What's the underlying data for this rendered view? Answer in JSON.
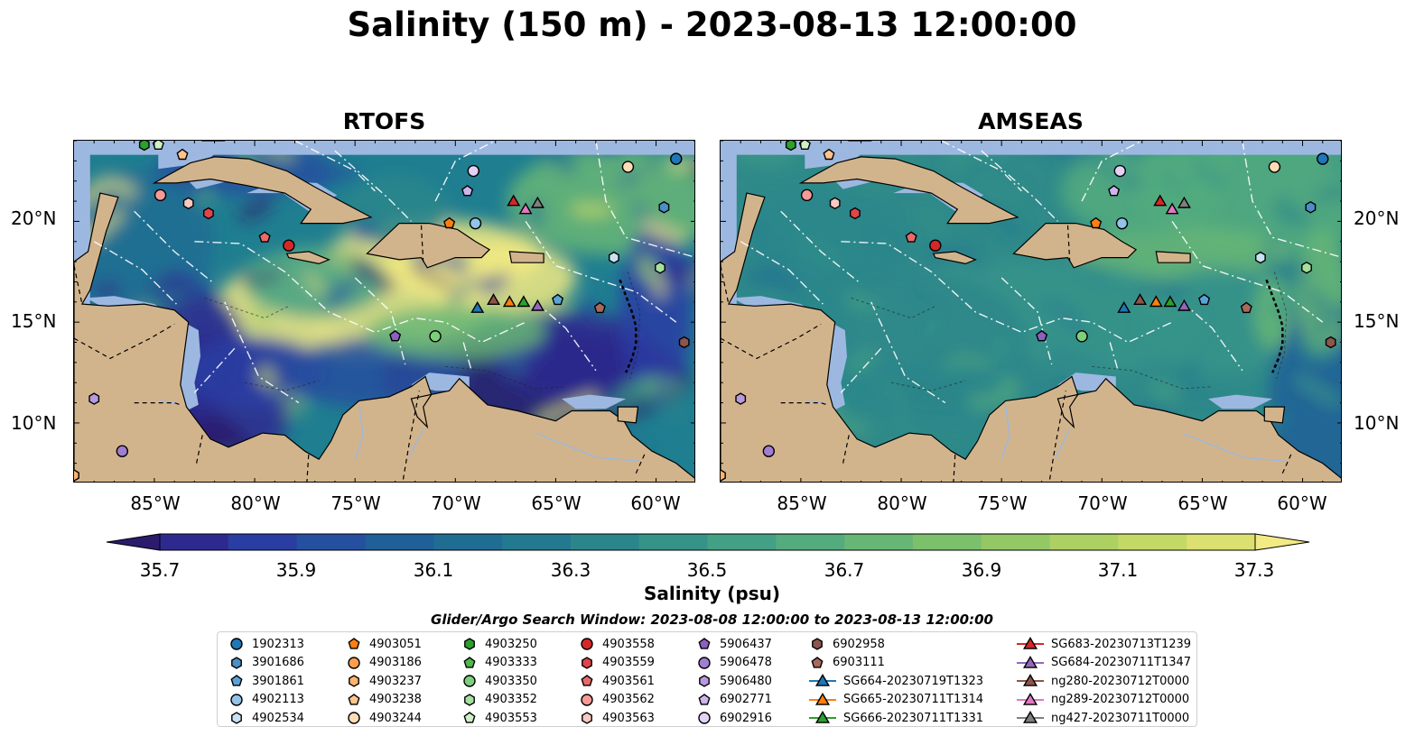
{
  "title": "Salinity (150 m) - 2023-08-13 12:00:00",
  "panels": [
    {
      "title": "RTOFS",
      "model": "rtofs"
    },
    {
      "title": "AMSEAS",
      "model": "amseas"
    }
  ],
  "lat_labels": [
    "20°N",
    "15°N",
    "10°N"
  ],
  "lon_labels": [
    "85°W",
    "80°W",
    "75°W",
    "70°W",
    "65°W",
    "60°W"
  ],
  "colorbar": {
    "label": "Salinity (psu)",
    "ticks": [
      "35.7",
      "35.9",
      "36.1",
      "36.3",
      "36.5",
      "36.7",
      "36.9",
      "37.1",
      "37.3"
    ],
    "min": 35.6,
    "max": 37.4,
    "step": 0.1,
    "colors": [
      "#2b1b6c",
      "#2d2a8f",
      "#2a3da3",
      "#24509f",
      "#205f98",
      "#1f6d93",
      "#23798f",
      "#2b868b",
      "#369389",
      "#43a085",
      "#54ab7e",
      "#67b675",
      "#7cc06b",
      "#93c865",
      "#add063",
      "#c4d866",
      "#dbe070",
      "#f2ea83"
    ],
    "extend": "both"
  },
  "search_window": "Glider/Argo Search Window: 2023-08-08 12:00:00 to 2023-08-13 12:00:00",
  "legend": [
    {
      "label": "1902313",
      "marker": "circle",
      "color": "#1f77b4"
    },
    {
      "label": "3901686",
      "marker": "hexagon",
      "color": "#4a8fc6"
    },
    {
      "label": "3901861",
      "marker": "pentagon",
      "color": "#5ba3d6"
    },
    {
      "label": "4902113",
      "marker": "circle",
      "color": "#93c4e8"
    },
    {
      "label": "4902534",
      "marker": "hexagon",
      "color": "#c8e2f4"
    },
    {
      "label": "4903051",
      "marker": "pentagon",
      "color": "#ff7f0e"
    },
    {
      "label": "4903186",
      "marker": "circle",
      "color": "#ff9d4d"
    },
    {
      "label": "4903237",
      "marker": "hexagon",
      "color": "#ffb36e"
    },
    {
      "label": "4903238",
      "marker": "pentagon",
      "color": "#ffc48e"
    },
    {
      "label": "4903244",
      "marker": "circle",
      "color": "#ffdcb5"
    },
    {
      "label": "4903250",
      "marker": "hexagon",
      "color": "#2ca02c"
    },
    {
      "label": "4903333",
      "marker": "pentagon",
      "color": "#4fb84f"
    },
    {
      "label": "4903350",
      "marker": "circle",
      "color": "#7cd07c"
    },
    {
      "label": "4903352",
      "marker": "hexagon",
      "color": "#a6dfa0"
    },
    {
      "label": "4903553",
      "marker": "pentagon",
      "color": "#cdf0c6"
    },
    {
      "label": "4903558",
      "marker": "circle",
      "color": "#d62728"
    },
    {
      "label": "4903559",
      "marker": "hexagon",
      "color": "#e0454a"
    },
    {
      "label": "4903561",
      "marker": "pentagon",
      "color": "#ea6a6a"
    },
    {
      "label": "4903562",
      "marker": "circle",
      "color": "#f59a98"
    },
    {
      "label": "4903563",
      "marker": "hexagon",
      "color": "#fbc8c4"
    },
    {
      "label": "5906437",
      "marker": "pentagon",
      "color": "#8c5fc0"
    },
    {
      "label": "5906478",
      "marker": "circle",
      "color": "#a07ed0"
    },
    {
      "label": "5906480",
      "marker": "hexagon",
      "color": "#b899dd"
    },
    {
      "label": "6902771",
      "marker": "pentagon",
      "color": "#ccb6ea"
    },
    {
      "label": "6902916",
      "marker": "circle",
      "color": "#e3d2f5"
    },
    {
      "label": "6902958",
      "marker": "hexagon",
      "color": "#8c564b"
    },
    {
      "label": "6903111",
      "marker": "pentagon",
      "color": "#a8695c"
    },
    {
      "label": "SG664-20230719T1323",
      "marker": "triangle-line",
      "color": "#1f77b4"
    },
    {
      "label": "SG665-20230711T1314",
      "marker": "triangle-line",
      "color": "#ff7f0e"
    },
    {
      "label": "SG666-20230711T1331",
      "marker": "triangle-line",
      "color": "#2ca02c"
    },
    {
      "label": "SG683-20230713T1239",
      "marker": "triangle-line",
      "color": "#d62728"
    },
    {
      "label": "SG684-20230711T1347",
      "marker": "triangle-line",
      "color": "#9467bd"
    },
    {
      "label": "ng280-20230712T0000",
      "marker": "triangle-line",
      "color": "#8c564b"
    },
    {
      "label": "ng289-20230712T0000",
      "marker": "triangle-line",
      "color": "#e377c2"
    },
    {
      "label": "ng427-20230711T0000",
      "marker": "triangle-line",
      "color": "#7f7f7f"
    }
  ],
  "map_extent": {
    "lon": [
      -89,
      -58
    ],
    "lat": [
      7,
      24
    ]
  },
  "observations": [
    {
      "id": "1902313",
      "lon": -59.0,
      "lat": 23.1
    },
    {
      "id": "3901686",
      "lon": -59.6,
      "lat": 20.7
    },
    {
      "id": "4902113",
      "lon": -69.0,
      "lat": 19.9
    },
    {
      "id": "4902534",
      "lon": -62.1,
      "lat": 18.2
    },
    {
      "id": "4903051",
      "lon": -70.3,
      "lat": 19.9
    },
    {
      "id": "4903237",
      "lon": -89.0,
      "lat": 7.4
    },
    {
      "id": "4903238",
      "lon": -83.6,
      "lat": 23.3
    },
    {
      "id": "4903244",
      "lon": -61.4,
      "lat": 22.7
    },
    {
      "id": "4903250",
      "lon": -85.5,
      "lat": 23.8
    },
    {
      "id": "4903350",
      "lon": -71.0,
      "lat": 14.3
    },
    {
      "id": "4903352",
      "lon": -59.8,
      "lat": 17.7
    },
    {
      "id": "4903553",
      "lon": -84.8,
      "lat": 23.8
    },
    {
      "id": "4903558",
      "lon": -78.3,
      "lat": 18.8
    },
    {
      "id": "4903559",
      "lon": -82.3,
      "lat": 20.4
    },
    {
      "id": "4903561",
      "lon": -79.5,
      "lat": 19.2
    },
    {
      "id": "4903562",
      "lon": -84.7,
      "lat": 21.3
    },
    {
      "id": "4903563",
      "lon": -83.3,
      "lat": 20.9
    },
    {
      "id": "5906437",
      "lon": -73.0,
      "lat": 14.3
    },
    {
      "id": "5906478",
      "lon": -86.6,
      "lat": 8.6
    },
    {
      "id": "5906480",
      "lon": -88.0,
      "lat": 11.2
    },
    {
      "id": "6902771",
      "lon": -69.4,
      "lat": 21.5
    },
    {
      "id": "6902916",
      "lon": -69.1,
      "lat": 22.5
    },
    {
      "id": "6902958",
      "lon": -58.6,
      "lat": 14.0
    },
    {
      "id": "6903111",
      "lon": -62.8,
      "lat": 15.7
    },
    {
      "id": "3901861",
      "lon": -64.9,
      "lat": 16.1
    },
    {
      "id": "SG664-20230719T1323",
      "lon": -68.9,
      "lat": 15.7
    },
    {
      "id": "SG665-20230711T1314",
      "lon": -67.3,
      "lat": 16.0
    },
    {
      "id": "SG666-20230711T1331",
      "lon": -66.6,
      "lat": 16.0
    },
    {
      "id": "SG683-20230713T1239",
      "lon": -67.1,
      "lat": 21.0
    },
    {
      "id": "SG684-20230711T1347",
      "lon": -65.9,
      "lat": 15.8
    },
    {
      "id": "ng280-20230712T0000",
      "lon": -68.1,
      "lat": 16.1
    },
    {
      "id": "ng289-20230712T0000",
      "lon": -66.5,
      "lat": 20.6
    },
    {
      "id": "ng427-20230711T0000",
      "lon": -65.9,
      "lat": 20.9
    }
  ]
}
